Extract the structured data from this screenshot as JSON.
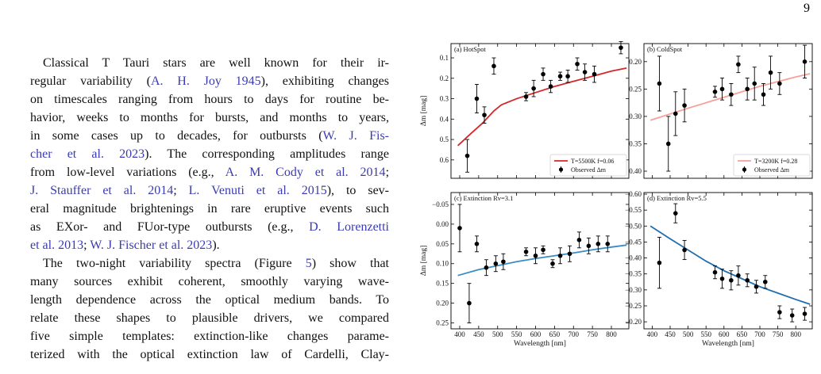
{
  "page_number": 9,
  "paragraphs": [
    {
      "lines": [
        [
          "Classical T Tauri stars are well known for their ir-"
        ],
        [
          "regular variability (",
          {
            "link": "A. H. Joy 1945"
          },
          "), exhibiting changes"
        ],
        [
          "on timescales ranging from hours to days for routine be-"
        ],
        [
          "havior, weeks to months for bursts, and months to years,"
        ],
        [
          "in some cases up to decades, for outbursts (",
          {
            "link": "W. J. Fis-"
          }
        ],
        [
          {
            "link": "cher et al. 2023"
          },
          "). The corresponding amplitudes range"
        ],
        [
          "from low-level variations (e.g., ",
          {
            "link": "A. M. Cody et al. 2014"
          },
          ";"
        ],
        [
          {
            "link": "J. Stauffer et al. 2014"
          },
          "; ",
          {
            "link": "L. Venuti et al. 2015"
          },
          "), to sev-"
        ],
        [
          "eral magnitude brightenings in rare eruptive events such"
        ],
        [
          "as EXor- and FUor-type outbursts (e.g., ",
          {
            "link": "D. Lorenzetti"
          }
        ],
        [
          {
            "link": "et al. 2013"
          },
          "; ",
          {
            "link": "W. J. Fischer et al. 2023"
          },
          ")."
        ]
      ]
    },
    {
      "lines": [
        [
          "The two-night variability spectra (Figure ",
          {
            "link": "5"
          },
          ") show that"
        ],
        [
          "many sources exhibit coherent, smoothly varying wave-"
        ],
        [
          "length dependence across the optical medium bands. To"
        ],
        [
          "relate these shapes to plausible drivers, we compared"
        ],
        [
          "five simple templates: extinction-like changes parame-"
        ],
        [
          "terized with the optical extinction law of Cardelli, Clay-"
        ]
      ]
    }
  ],
  "chart_data": [
    {
      "type": "errorbar",
      "title": "(a) HotSpot",
      "ylabel": "Δm [mag]",
      "legend": "lower right",
      "xlim": [
        377,
        846
      ],
      "ylim": [
        0.69,
        0.03
      ],
      "xticks": [
        400,
        450,
        500,
        550,
        600,
        650,
        700,
        750,
        800
      ],
      "xtick_labels": false,
      "yticks": [
        0.1,
        0.2,
        0.3,
        0.4,
        0.5,
        0.6
      ],
      "series": [
        {
          "name": "T=5500K f=0.06",
          "type": "line",
          "color": "#d62728",
          "x": [
            395,
            430,
            460,
            490,
            510,
            550,
            600,
            650,
            700,
            750,
            800,
            840
          ],
          "values": [
            0.53,
            0.47,
            0.42,
            0.36,
            0.33,
            0.3,
            0.27,
            0.24,
            0.215,
            0.19,
            0.165,
            0.15
          ]
        },
        {
          "name": "Observed Δm",
          "type": "errorbar",
          "color": "#000000",
          "x": [
            420,
            445,
            465,
            490,
            575,
            595,
            620,
            640,
            665,
            685,
            710,
            730,
            755,
            825
          ],
          "values": [
            0.58,
            0.3,
            0.38,
            0.14,
            0.29,
            0.25,
            0.18,
            0.24,
            0.19,
            0.19,
            0.13,
            0.17,
            0.18,
            0.05
          ],
          "errors": [
            0.08,
            0.07,
            0.04,
            0.04,
            0.02,
            0.04,
            0.03,
            0.03,
            0.02,
            0.03,
            0.03,
            0.04,
            0.04,
            0.03
          ]
        }
      ]
    },
    {
      "type": "errorbar",
      "title": "(b) ColdSpot",
      "legend": "lower right",
      "xlim": [
        377,
        846
      ],
      "ylim": [
        0.413,
        0.167
      ],
      "xticks": [
        400,
        450,
        500,
        550,
        600,
        650,
        700,
        750,
        800
      ],
      "xtick_labels": false,
      "yticks": [
        {
          "value": 0.2,
          "label": "0.20"
        },
        {
          "value": 0.25,
          "label": "0.25"
        },
        {
          "value": 0.3,
          "label": "0.30"
        },
        {
          "value": 0.35,
          "label": "0.35"
        },
        {
          "value": 0.4,
          "label": "0.40"
        }
      ],
      "series": [
        {
          "name": "T=3200K f=0.28",
          "type": "line",
          "color": "#f7a09a",
          "x": [
            395,
            500,
            600,
            700,
            800,
            840
          ],
          "values": [
            0.307,
            0.285,
            0.265,
            0.245,
            0.228,
            0.222
          ]
        },
        {
          "name": "Observed Δm",
          "type": "errorbar",
          "color": "#000000",
          "x": [
            420,
            445,
            465,
            490,
            575,
            595,
            620,
            640,
            665,
            685,
            710,
            730,
            755,
            825
          ],
          "values": [
            0.24,
            0.35,
            0.295,
            0.28,
            0.255,
            0.25,
            0.26,
            0.205,
            0.25,
            0.24,
            0.26,
            0.22,
            0.24,
            0.2
          ],
          "errors": [
            0.05,
            0.05,
            0.04,
            0.03,
            0.01,
            0.02,
            0.02,
            0.015,
            0.02,
            0.03,
            0.02,
            0.03,
            0.02,
            0.03
          ]
        }
      ]
    },
    {
      "type": "errorbar",
      "title": "(c) Extinction Rv=3.1",
      "ylabel": "Δm [mag]",
      "xlabel": "Wavelength [nm]",
      "xlim": [
        377,
        846
      ],
      "ylim": [
        0.265,
        -0.08
      ],
      "xticks": [
        400,
        450,
        500,
        550,
        600,
        650,
        700,
        750,
        800
      ],
      "yticks": [
        {
          "value": -0.05,
          "label": "−0.05"
        },
        {
          "value": 0,
          "label": "0.00"
        },
        {
          "value": 0.05,
          "label": "0.05"
        },
        {
          "value": 0.1,
          "label": "0.10"
        },
        {
          "value": 0.15,
          "label": "0.15"
        },
        {
          "value": 0.2,
          "label": "0.20"
        },
        {
          "value": 0.25,
          "label": "0.25"
        }
      ],
      "series": [
        {
          "type": "line",
          "color": "#3a8cc4",
          "x": [
            395,
            450,
            500,
            550,
            600,
            650,
            700,
            750,
            800,
            840
          ],
          "values": [
            0.13,
            0.115,
            0.105,
            0.095,
            0.087,
            0.08,
            0.073,
            0.065,
            0.058,
            0.053
          ]
        },
        {
          "type": "errorbar",
          "color": "#000000",
          "x": [
            400,
            425,
            445,
            470,
            495,
            515,
            575,
            600,
            620,
            645,
            665,
            690,
            715,
            740,
            765,
            790
          ],
          "values": [
            0.01,
            0.2,
            0.05,
            0.11,
            0.1,
            0.095,
            0.07,
            0.08,
            0.065,
            0.1,
            0.08,
            0.075,
            0.04,
            0.055,
            0.05,
            0.05
          ],
          "errors": [
            0.06,
            0.05,
            0.02,
            0.02,
            0.02,
            0.02,
            0.01,
            0.02,
            0.01,
            0.01,
            0.02,
            0.02,
            0.02,
            0.02,
            0.02,
            0.02
          ]
        }
      ]
    },
    {
      "type": "errorbar",
      "title": "(d) Extinction Rv=5.5",
      "xlabel": "Wavelength [nm]",
      "xlim": [
        377,
        846
      ],
      "ylim": [
        -0.178,
        -0.605
      ],
      "xticks": [
        400,
        450,
        500,
        550,
        600,
        650,
        700,
        750,
        800
      ],
      "yticks": [
        {
          "value": -0.6,
          "label": "−0.60"
        },
        {
          "value": -0.55,
          "label": "−0.55"
        },
        {
          "value": -0.5,
          "label": "−0.50"
        },
        {
          "value": -0.45,
          "label": "−0.45"
        },
        {
          "value": -0.4,
          "label": "−0.40"
        },
        {
          "value": -0.35,
          "label": "−0.35"
        },
        {
          "value": -0.3,
          "label": "−0.30"
        },
        {
          "value": -0.25,
          "label": "−0.25"
        },
        {
          "value": -0.2,
          "label": "−0.20"
        }
      ],
      "series": [
        {
          "type": "line",
          "color": "#1f6fb0",
          "x": [
            395,
            450,
            500,
            550,
            600,
            650,
            700,
            750,
            800,
            840
          ],
          "values": [
            -0.5,
            -0.46,
            -0.425,
            -0.39,
            -0.36,
            -0.335,
            -0.31,
            -0.29,
            -0.27,
            -0.255
          ]
        },
        {
          "type": "errorbar",
          "color": "#000000",
          "x": [
            420,
            465,
            490,
            575,
            595,
            620,
            640,
            665,
            690,
            715,
            755,
            790,
            825
          ],
          "values": [
            -0.385,
            -0.54,
            -0.425,
            -0.355,
            -0.335,
            -0.33,
            -0.345,
            -0.33,
            -0.31,
            -0.325,
            -0.23,
            -0.22,
            -0.225
          ],
          "errors": [
            0.08,
            0.03,
            0.03,
            0.02,
            0.03,
            0.03,
            0.03,
            0.02,
            0.02,
            0.02,
            0.02,
            0.02,
            0.02
          ]
        }
      ]
    }
  ]
}
